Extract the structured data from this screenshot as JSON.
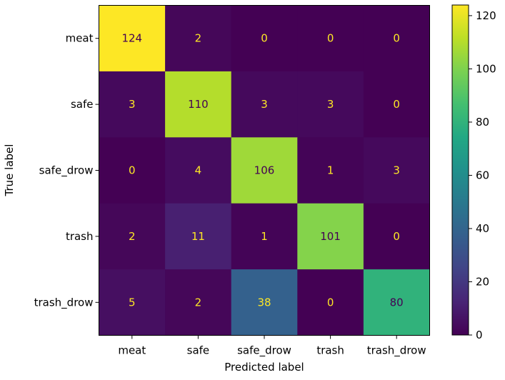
{
  "chart_data": {
    "type": "heatmap",
    "title": "",
    "xlabel": "Predicted label",
    "ylabel": "True label",
    "x_categories": [
      "meat",
      "safe",
      "safe_drow",
      "trash",
      "trash_drow"
    ],
    "y_categories": [
      "meat",
      "safe",
      "safe_drow",
      "trash",
      "trash_drow"
    ],
    "values": [
      [
        124,
        2,
        0,
        0,
        0
      ],
      [
        3,
        110,
        3,
        3,
        0
      ],
      [
        0,
        4,
        106,
        1,
        3
      ],
      [
        2,
        11,
        1,
        101,
        0
      ],
      [
        5,
        2,
        38,
        0,
        80
      ]
    ],
    "colormap": "viridis",
    "value_range": [
      0,
      124
    ],
    "colorbar": {
      "ticks": [
        0,
        20,
        40,
        60,
        80,
        100,
        120
      ],
      "range": [
        0,
        124
      ]
    },
    "text_colors": {
      "light": "#fde725",
      "dark": "#440154"
    }
  }
}
